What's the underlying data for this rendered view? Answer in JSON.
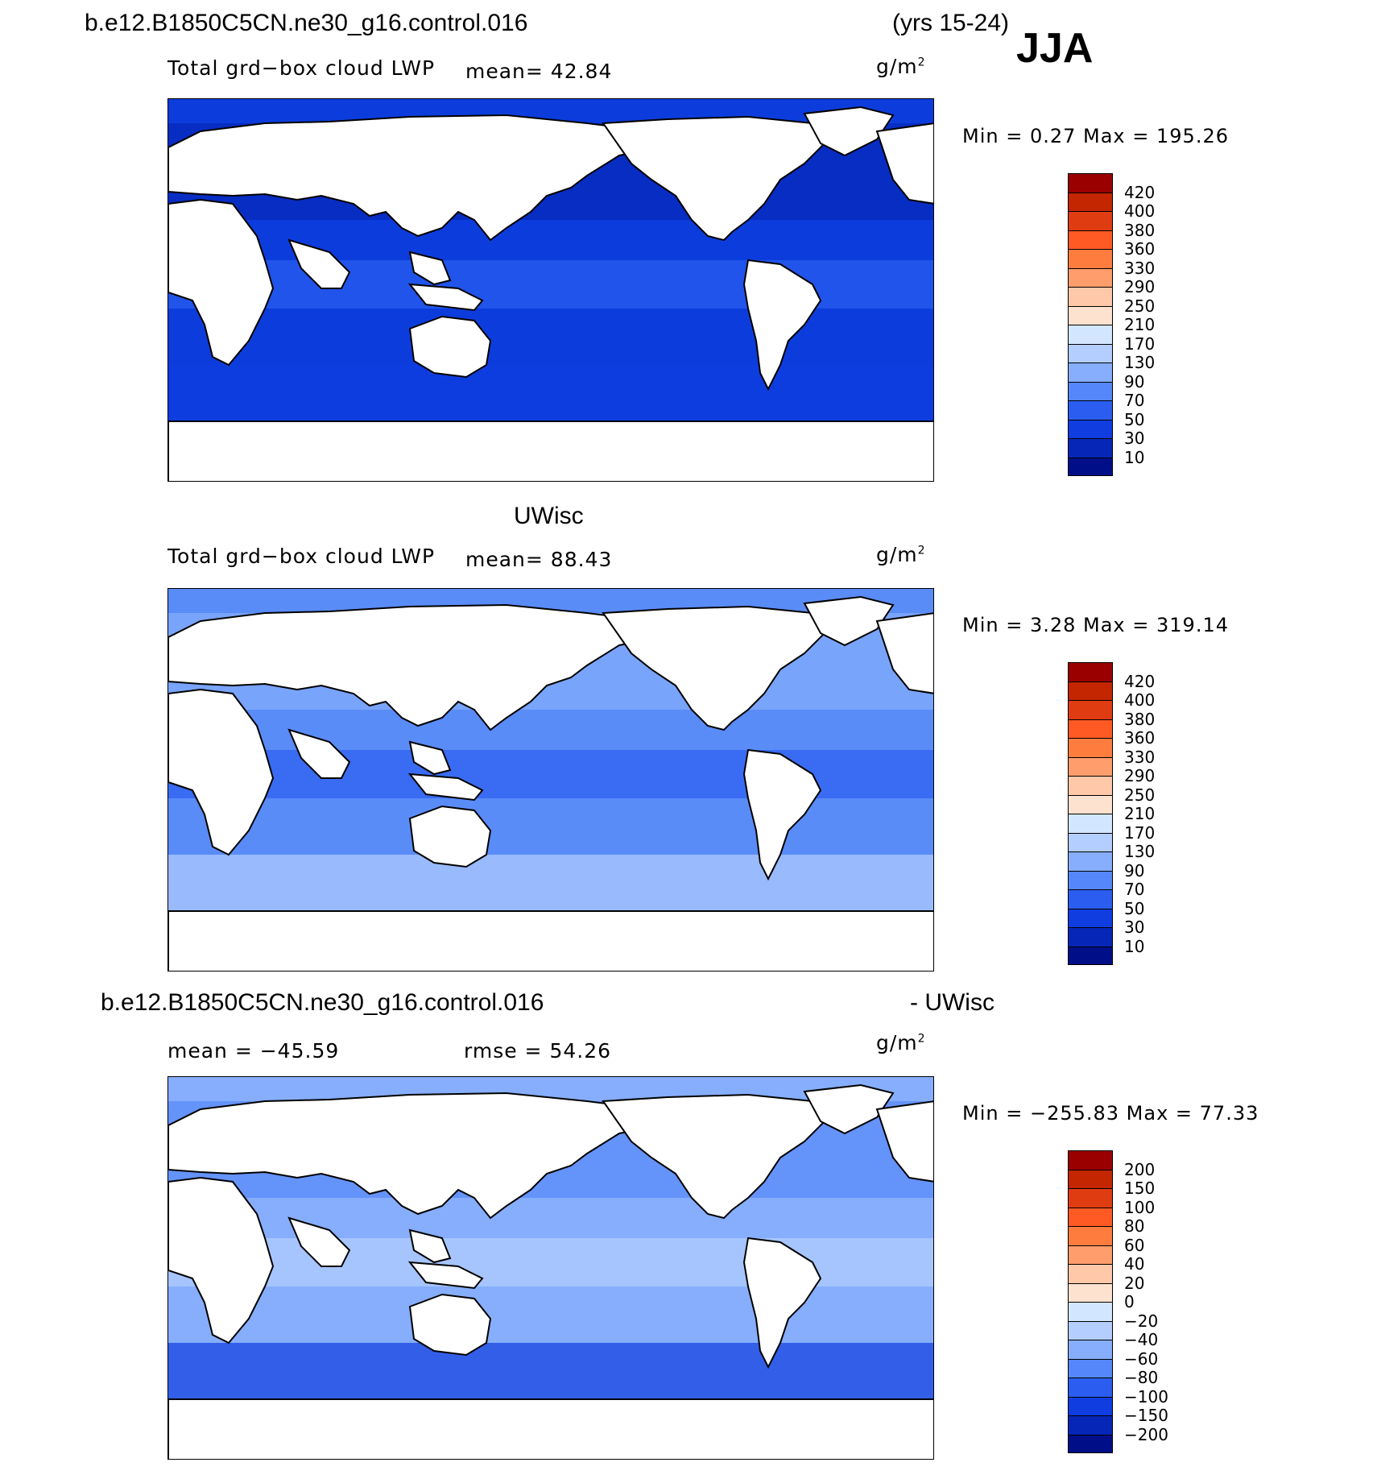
{
  "header": {
    "case_name": "b.e12.B1850C5CN.ne30_g16.control.016",
    "years": "(yrs 15-24)",
    "season": "JJA"
  },
  "panels": [
    {
      "id": "model",
      "label_top": "",
      "variable": "Total grd−box cloud LWP",
      "stat": "mean=   42.84",
      "units": "g/m",
      "units_sup": "2",
      "minmax": "Min =    0.27 Max = 195.26",
      "colors": [
        "#9a0000",
        "#c32600",
        "#e03c12",
        "#ff5a24",
        "#ff7c3f",
        "#ff9d6c",
        "#ffc8a8",
        "#fde2cf",
        "#d3e6ff",
        "#b3ceff",
        "#86aefc",
        "#5587fa",
        "#2b5ef0",
        "#0f3de0",
        "#0626b8",
        "#000f88"
      ],
      "labels": [
        "420",
        "400",
        "380",
        "360",
        "330",
        "290",
        "250",
        "210",
        "170",
        "130",
        "90",
        "70",
        "50",
        "30",
        "10"
      ],
      "ocean_base": "#0c3ddc",
      "ocean_bands": [
        "#0626b8",
        "#2b5ef0",
        "#0f3de0"
      ]
    },
    {
      "id": "obs",
      "label_top": "UWisc",
      "variable": "Total grd−box cloud LWP",
      "stat": "mean=   88.43",
      "units": "g/m",
      "units_sup": "2",
      "minmax": "Min =    3.28 Max = 319.14",
      "colors": [
        "#9a0000",
        "#c32600",
        "#e03c12",
        "#ff5a24",
        "#ff7c3f",
        "#ff9d6c",
        "#ffc8a8",
        "#fde2cf",
        "#d3e6ff",
        "#b3ceff",
        "#86aefc",
        "#5587fa",
        "#2b5ef0",
        "#0f3de0",
        "#0626b8",
        "#000f88"
      ],
      "labels": [
        "420",
        "400",
        "380",
        "360",
        "330",
        "290",
        "250",
        "210",
        "170",
        "130",
        "90",
        "70",
        "50",
        "30",
        "10"
      ],
      "ocean_base": "#5a8cf8",
      "ocean_bands": [
        "#86aefc",
        "#2b5ef0",
        "#b3ceff"
      ]
    },
    {
      "id": "diff",
      "label_top": "",
      "diff_left": "b.e12.B1850C5CN.ne30_g16.control.016",
      "diff_right": "- UWisc",
      "stat_mean": "mean = −45.59",
      "stat_rmse": "rmse =   54.26",
      "units": "g/m",
      "units_sup": "2",
      "minmax": "Min = −255.83 Max =   77.33",
      "colors": [
        "#9a0000",
        "#c32600",
        "#e03c12",
        "#ff5a24",
        "#ff7c3f",
        "#ff9d6c",
        "#ffc8a8",
        "#fde2cf",
        "#d3e6ff",
        "#b3ceff",
        "#86aefc",
        "#5587fa",
        "#2b5ef0",
        "#0f3de0",
        "#0626b8",
        "#000f88"
      ],
      "labels": [
        "200",
        "150",
        "100",
        "80",
        "60",
        "40",
        "20",
        "0",
        "−20",
        "−40",
        "−60",
        "−80",
        "−100",
        "−150",
        "−200"
      ],
      "ocean_base": "#86aefc",
      "ocean_bands": [
        "#5587fa",
        "#b3ceff",
        "#0f3de0"
      ]
    }
  ]
}
